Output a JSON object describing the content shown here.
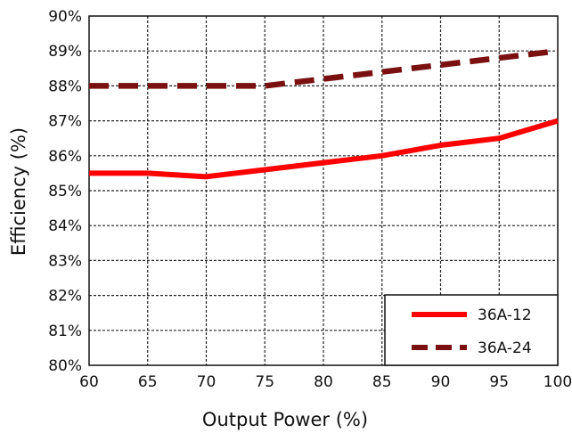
{
  "chart_data": {
    "type": "line",
    "xlabel": "Output Power (%)",
    "ylabel": "Efficiency (%)",
    "xlim": [
      60,
      100
    ],
    "ylim": [
      80,
      90
    ],
    "x_ticks": [
      "60",
      "65",
      "70",
      "75",
      "80",
      "85",
      "90",
      "95",
      "100"
    ],
    "y_ticks": [
      "80%",
      "81%",
      "82%",
      "83%",
      "84%",
      "85%",
      "86%",
      "87%",
      "88%",
      "89%",
      "90%"
    ],
    "grid": true,
    "legend_position": "bottom-right",
    "series": [
      {
        "name": "36A-12",
        "color": "#ff0000",
        "line_style": "solid",
        "x": [
          60,
          65,
          70,
          75,
          80,
          85,
          90,
          95,
          100
        ],
        "y": [
          85.5,
          85.5,
          85.4,
          85.6,
          85.8,
          86.0,
          86.3,
          86.5,
          87.0
        ]
      },
      {
        "name": "36A-24",
        "color": "#7b1010",
        "line_style": "dashed",
        "x": [
          60,
          65,
          70,
          75,
          80,
          85,
          90,
          95,
          100
        ],
        "y": [
          88.0,
          88.0,
          88.0,
          88.0,
          88.2,
          88.4,
          88.6,
          88.8,
          89.0
        ]
      }
    ]
  }
}
